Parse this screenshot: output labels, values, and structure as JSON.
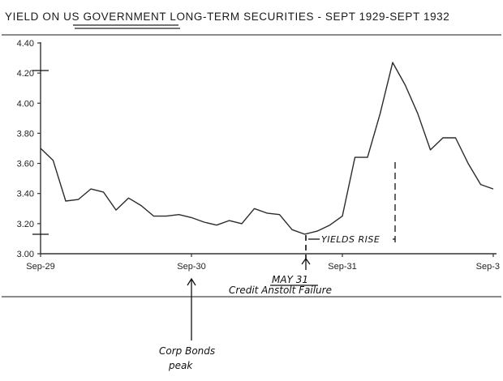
{
  "chart_data": {
    "type": "line",
    "title": "YIELD ON US GOVERNMENT LONG-TERM SECURITIES - SEPT 1929-SEPT 1932",
    "xlabel": "",
    "ylabel": "",
    "ylim": [
      3.0,
      4.4
    ],
    "yticks": [
      3.0,
      3.2,
      3.4,
      3.6,
      3.8,
      4.0,
      4.2,
      4.4
    ],
    "ytick_labels": [
      "3.00",
      "3.20",
      "3.40",
      "3.60",
      "3.80",
      "4.00",
      "4.20",
      "4.40"
    ],
    "xlim": [
      0,
      36
    ],
    "xticks": [
      0,
      12,
      24,
      36
    ],
    "xtick_labels": [
      "Sep-29",
      "Sep-30",
      "Sep-31",
      "Sep-3"
    ],
    "x": [
      0,
      1,
      2,
      3,
      4,
      5,
      6,
      7,
      8,
      9,
      10,
      11,
      12,
      13,
      14,
      15,
      16,
      17,
      18,
      19,
      20,
      21,
      22,
      23,
      24,
      25,
      26,
      27,
      28,
      29,
      30,
      31,
      32,
      33,
      34,
      35,
      36
    ],
    "values": [
      3.7,
      3.62,
      3.35,
      3.36,
      3.43,
      3.41,
      3.29,
      3.37,
      3.32,
      3.25,
      3.25,
      3.26,
      3.24,
      3.21,
      3.19,
      3.22,
      3.2,
      3.3,
      3.27,
      3.26,
      3.16,
      3.13,
      3.15,
      3.19,
      3.25,
      3.64,
      3.64,
      3.93,
      4.27,
      4.12,
      3.93,
      3.69,
      3.77,
      3.77,
      3.6,
      3.46,
      3.43
    ],
    "grid": false,
    "legend": "none",
    "annotations": {
      "yields_rise": "YIELDS RISE",
      "may31_date": "MAY 31",
      "may31_event": "Credit Anstolt Failure",
      "corp_bonds_line1": "Corp Bonds",
      "corp_bonds_line2": "peak"
    }
  }
}
